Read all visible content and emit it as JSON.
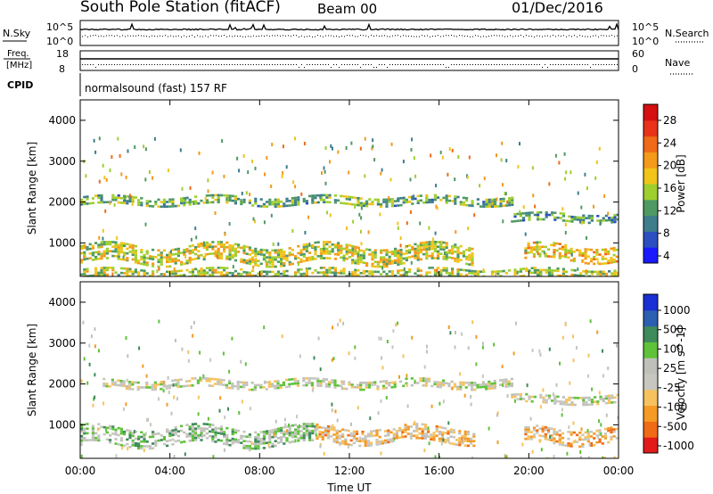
{
  "header": {
    "station": "South Pole Station (fitACF)",
    "beam": "Beam 00",
    "date": "01/Dec/2016"
  },
  "housekeeping": {
    "nsky_label": "N.Sky",
    "nsearch_label": "N.Search",
    "freq_label_1": "Freq.",
    "freq_label_2": "[MHz]",
    "nave_label": "Nave",
    "cpid_label": "CPID",
    "cpid_text": "normalsound (fast) 157 RF",
    "noise_ticks": [
      "10^5",
      "10^0"
    ],
    "noise_ticks_right": [
      "10^5",
      "10^0"
    ],
    "freq_ticks": [
      "18",
      "8"
    ],
    "nave_ticks": [
      "60",
      "0"
    ]
  },
  "colors": {
    "power_scale": [
      "#1a1aff",
      "#2b4fbf",
      "#3e7d8c",
      "#4f9a63",
      "#9ecf2e",
      "#f0c419",
      "#f39a1a",
      "#ef6b17",
      "#e8321a",
      "#d51010"
    ],
    "velocity_scale": [
      "#e31a1a",
      "#f06b16",
      "#f59a24",
      "#f6c25e",
      "#c7c7c0",
      "#c0c0bb",
      "#5fc23a",
      "#3e8a5a",
      "#2d5fb0",
      "#1a2fd4"
    ]
  },
  "chart_data": [
    {
      "type": "heatmap",
      "title": "Power",
      "ylabel": "Slant Range [km]",
      "xlabel": "",
      "xlim": [
        "00:00",
        "00:00"
      ],
      "ylim": [
        180,
        4500
      ],
      "x_ticks": [
        "00:00",
        "04:00",
        "08:00",
        "12:00",
        "16:00",
        "20:00",
        "00:00"
      ],
      "y_ticks": [
        1000,
        2000,
        3000,
        4000
      ],
      "colorbar": {
        "label": "Power [dB]",
        "ticks": [
          "28",
          "24",
          "20",
          "16",
          "12",
          "8",
          "4"
        ],
        "range": [
          0,
          30
        ]
      },
      "bands": [
        {
          "t0": 0.0,
          "t1": 19.2,
          "r_center": 2080,
          "width": 220,
          "value": 11
        },
        {
          "t0": 19.2,
          "t1": 24.0,
          "r_center": 1650,
          "width": 180,
          "value": 10
        },
        {
          "t0": 0.0,
          "t1": 17.5,
          "r_center": 760,
          "width": 420,
          "value": 15
        },
        {
          "t0": 19.8,
          "t1": 24.0,
          "r_center": 800,
          "width": 380,
          "value": 17
        },
        {
          "t0": 0.0,
          "t1": 24.0,
          "r_center": 300,
          "width": 200,
          "value": 14
        }
      ]
    },
    {
      "type": "heatmap",
      "title": "Velocity",
      "ylabel": "Slant Range [km]",
      "xlabel": "Time UT",
      "xlim": [
        "00:00",
        "00:00"
      ],
      "ylim": [
        180,
        4500
      ],
      "x_ticks": [
        "00:00",
        "04:00",
        "08:00",
        "12:00",
        "16:00",
        "20:00",
        "00:00"
      ],
      "y_ticks": [
        1000,
        2000,
        3000,
        4000
      ],
      "colorbar": {
        "label": "Velocity [m s^-1]",
        "ticks": [
          "1000",
          "500",
          "100",
          "25",
          "-25",
          "-100",
          "-500",
          "-1000"
        ],
        "range": [
          -1000,
          1000
        ]
      },
      "bands": [
        {
          "t0": 1.0,
          "t1": 19.2,
          "r_center": 2050,
          "width": 220,
          "value": 0
        },
        {
          "t0": 19.2,
          "t1": 24.0,
          "r_center": 1650,
          "width": 180,
          "value": 0
        },
        {
          "t0": 0.0,
          "t1": 10.5,
          "r_center": 760,
          "width": 420,
          "value": 200
        },
        {
          "t0": 10.5,
          "t1": 17.5,
          "r_center": 800,
          "width": 380,
          "value": -300
        },
        {
          "t0": 19.8,
          "t1": 24.0,
          "r_center": 780,
          "width": 380,
          "value": -350
        }
      ]
    }
  ]
}
